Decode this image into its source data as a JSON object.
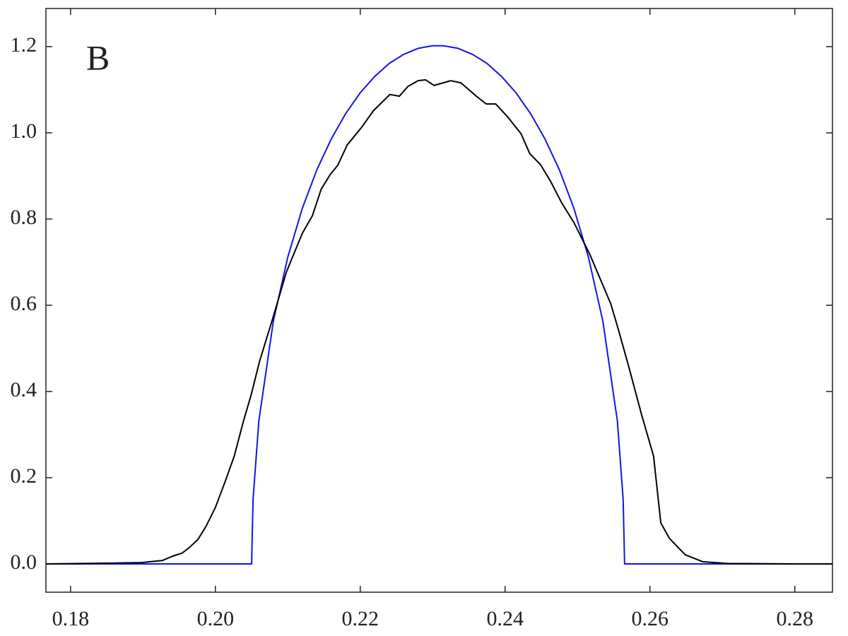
{
  "chart_data": {
    "type": "line",
    "annotation": "B",
    "xlim": [
      0.1766,
      0.2852
    ],
    "ylim": [
      -0.0656,
      1.2885
    ],
    "xticks": [
      0.18,
      {
        "value": 0.2,
        "label": "0.20"
      },
      0.22,
      0.24,
      0.26,
      0.28
    ],
    "yticks": [
      {
        "value": 0,
        "label": "0.0"
      },
      0.2,
      0.4,
      0.6,
      0.8,
      {
        "value": 1,
        "label": "1.0"
      },
      1.2
    ],
    "grid": false,
    "series": [
      {
        "color": "#1414e6",
        "x": [
          0.1766,
          0.205,
          0.2052,
          0.206,
          0.208,
          0.21,
          0.212,
          0.214,
          0.216,
          0.218,
          0.22,
          0.222,
          0.224,
          0.226,
          0.228,
          0.23,
          0.2315,
          0.2335,
          0.2355,
          0.2375,
          0.2395,
          0.2415,
          0.2435,
          0.2455,
          0.2475,
          0.2495,
          0.2515,
          0.2535,
          0.2555,
          0.2563,
          0.2565,
          0.2852
        ],
        "values": [
          0,
          0,
          0.15,
          0.332,
          0.563,
          0.712,
          0.825,
          0.914,
          0.986,
          1.045,
          1.093,
          1.131,
          1.161,
          1.182,
          1.196,
          1.202,
          1.202,
          1.196,
          1.182,
          1.161,
          1.131,
          1.093,
          1.045,
          0.986,
          0.914,
          0.825,
          0.712,
          0.563,
          0.332,
          0.15,
          0,
          0
        ]
      },
      {
        "color": "#000000",
        "x": [
          0.1766,
          0.1863,
          0.1898,
          0.1927,
          0.1941,
          0.1954,
          0.1964,
          0.1976,
          0.1987,
          0.2,
          0.2013,
          0.2026,
          0.2039,
          0.2049,
          0.2061,
          0.208,
          0.2098,
          0.212,
          0.2134,
          0.2146,
          0.2158,
          0.2169,
          0.2182,
          0.2202,
          0.2218,
          0.2241,
          0.2254,
          0.2266,
          0.228,
          0.229,
          0.2302,
          0.2325,
          0.2339,
          0.2361,
          0.2374,
          0.2387,
          0.2403,
          0.2422,
          0.2434,
          0.2449,
          0.2463,
          0.2478,
          0.2495,
          0.2517,
          0.2546,
          0.2556,
          0.2571,
          0.2588,
          0.2605,
          0.2615,
          0.2627,
          0.2639,
          0.2649,
          0.2673,
          0.2707,
          0.28,
          0.2852
        ],
        "values": [
          0,
          0.002,
          0.003,
          0.008,
          0.018,
          0.025,
          0.038,
          0.057,
          0.087,
          0.131,
          0.189,
          0.25,
          0.333,
          0.39,
          0.47,
          0.574,
          0.677,
          0.767,
          0.808,
          0.869,
          0.902,
          0.925,
          0.972,
          1.013,
          1.051,
          1.089,
          1.085,
          1.108,
          1.121,
          1.123,
          1.11,
          1.121,
          1.116,
          1.084,
          1.067,
          1.067,
          1.038,
          0.998,
          0.952,
          0.926,
          0.887,
          0.838,
          0.792,
          0.718,
          0.603,
          0.546,
          0.456,
          0.349,
          0.25,
          0.095,
          0.059,
          0.038,
          0.021,
          0.005,
          0.001,
          0,
          0
        ]
      }
    ]
  }
}
